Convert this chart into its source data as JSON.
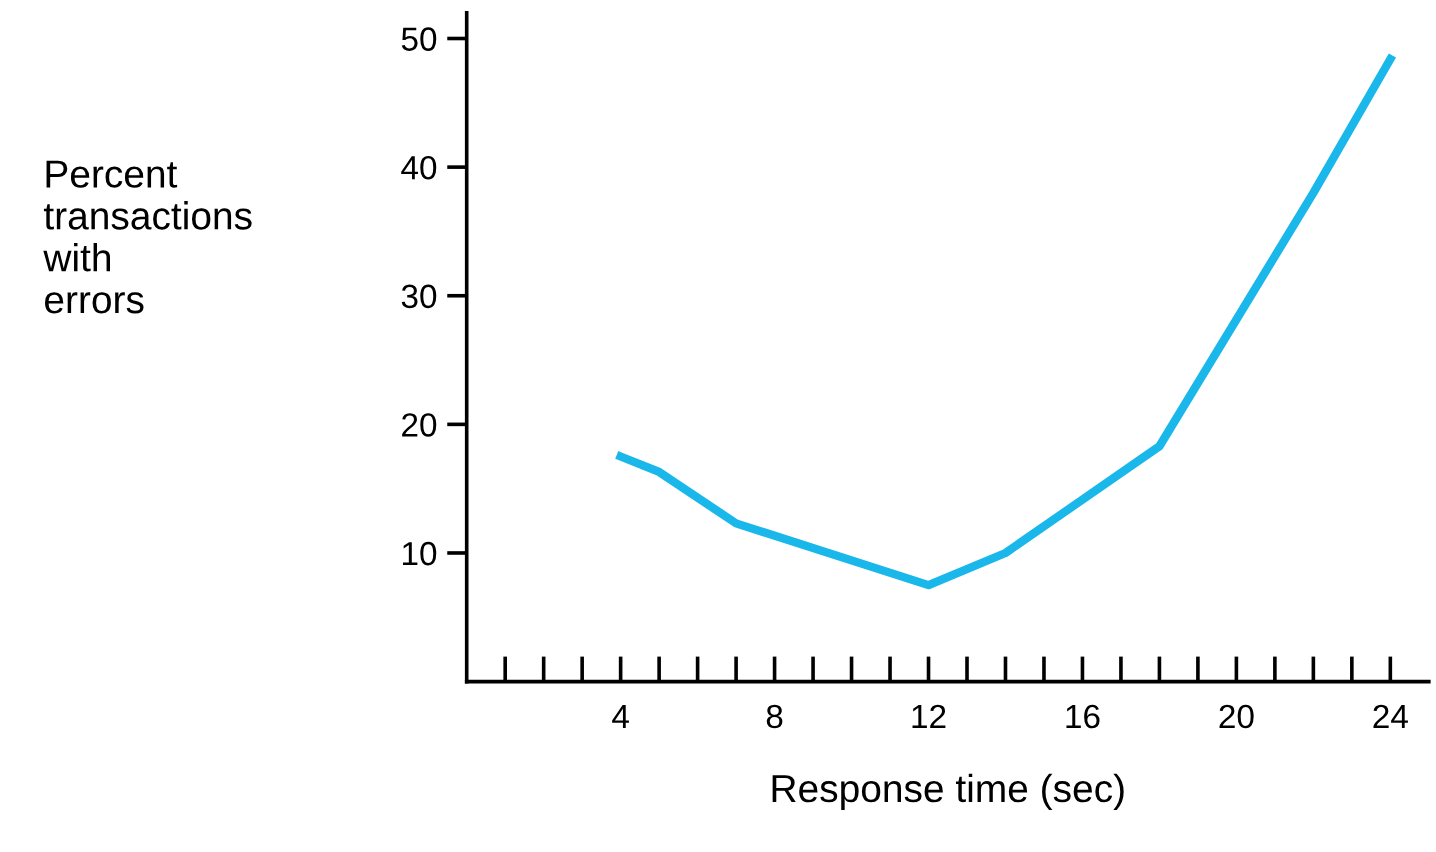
{
  "chart_data": {
    "type": "line",
    "xlabel": "Response time (sec)",
    "ylabel": "Percent\ntransactions\nwith\nerrors",
    "x": [
      4,
      5,
      7,
      12,
      14,
      18,
      22,
      24
    ],
    "series": [
      {
        "color": "#1ab7ea",
        "values": [
          17.5,
          16.3,
          12.3,
          7.5,
          10,
          18.3,
          38,
          48.4
        ]
      }
    ],
    "xlim": [
      0,
      25
    ],
    "ylim": [
      0,
      52
    ],
    "xticks": [
      {
        "value": 1,
        "label": null
      },
      {
        "value": 2,
        "label": null
      },
      {
        "value": 3,
        "label": null
      },
      4,
      {
        "value": 5,
        "label": null
      },
      {
        "value": 6,
        "label": null
      },
      {
        "value": 7,
        "label": null
      },
      8,
      {
        "value": 9,
        "label": null
      },
      {
        "value": 10,
        "label": null
      },
      {
        "value": 11,
        "label": null
      },
      12,
      {
        "value": 13,
        "label": null
      },
      {
        "value": 14,
        "label": null
      },
      {
        "value": 15,
        "label": null
      },
      16,
      {
        "value": 17,
        "label": null
      },
      {
        "value": 18,
        "label": null
      },
      {
        "value": 19,
        "label": null
      },
      20,
      {
        "value": 21,
        "label": null
      },
      {
        "value": 22,
        "label": null
      },
      {
        "value": 23,
        "label": null
      },
      24
    ],
    "yticks": [
      10,
      20,
      30,
      40,
      50
    ],
    "grid": false,
    "legend": false,
    "marker": "none",
    "line_style": "solid"
  }
}
